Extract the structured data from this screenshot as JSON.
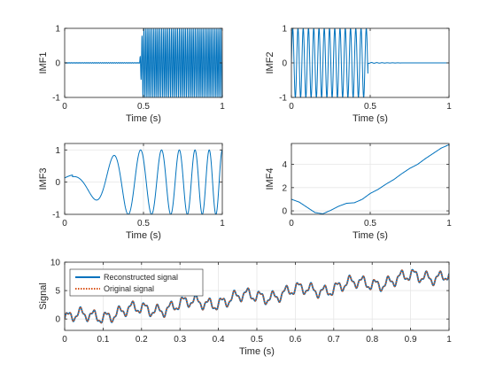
{
  "chart_data": [
    {
      "id": "imf1",
      "type": "line",
      "xlabel": "Time (s)",
      "ylabel": "IMF1",
      "xlim": [
        0,
        1
      ],
      "ylim": [
        -1,
        1
      ],
      "xticks": [
        "0",
        "0.5",
        "1"
      ],
      "yticks": [
        "-1",
        "0",
        "1"
      ],
      "grid": true,
      "color": "#0072BD",
      "series": [
        {
          "description": "near-zero flat line for t < 0.48, then a unit-amplitude sinusoid of about 80 Hz from 0.48 s to 1 s"
        }
      ]
    },
    {
      "id": "imf2",
      "type": "line",
      "xlabel": "Time (s)",
      "ylabel": "IMF2",
      "xlim": [
        0,
        1
      ],
      "ylim": [
        -1,
        1
      ],
      "xticks": [
        "0",
        "0.5",
        "1"
      ],
      "yticks": [
        "-1",
        "0",
        "1"
      ],
      "grid": true,
      "color": "#0072BD",
      "series": [
        {
          "description": "unit-amplitude sinusoid of about 30 Hz from 0 to 0.48 s, then a near-zero line to 1 s"
        }
      ]
    },
    {
      "id": "imf3",
      "type": "line",
      "xlabel": "Time (s)",
      "ylabel": "IMF3",
      "xlim": [
        0,
        1
      ],
      "ylim": [
        -1,
        1.2
      ],
      "xticks": [
        "0",
        "0.5",
        "1"
      ],
      "yticks": [
        "-1",
        "0",
        "1"
      ],
      "grid": true,
      "color": "#0072BD",
      "series": [
        {
          "description": "chirp oscillation whose amplitude grows from about 0.1 to 1 and whose frequency rises to roughly 12 Hz"
        }
      ]
    },
    {
      "id": "imf4",
      "type": "line",
      "xlabel": "Time (s)",
      "ylabel": "IMF4",
      "xlim": [
        0,
        1
      ],
      "ylim": [
        -0.3,
        5.8
      ],
      "xticks": [
        "0",
        "0.5",
        "1"
      ],
      "yticks": [
        "0",
        "2",
        "4"
      ],
      "grid": true,
      "color": "#0072BD",
      "x": [
        0,
        0.05,
        0.1,
        0.15,
        0.2,
        0.25,
        0.3,
        0.35,
        0.4,
        0.45,
        0.5,
        0.55,
        0.6,
        0.65,
        0.7,
        0.75,
        0.8,
        0.85,
        0.9,
        0.95,
        1.0
      ],
      "y": [
        1.0,
        0.75,
        0.3,
        -0.15,
        -0.25,
        0.05,
        0.4,
        0.65,
        0.7,
        1.0,
        1.5,
        1.85,
        2.3,
        2.7,
        3.2,
        3.65,
        4.0,
        4.5,
        4.95,
        5.4,
        5.7
      ]
    },
    {
      "id": "signal",
      "type": "line",
      "xlabel": "Time (s)",
      "ylabel": "Signal",
      "xlim": [
        0,
        1
      ],
      "ylim": [
        -2,
        10
      ],
      "xticks": [
        "0",
        "0.1",
        "0.2",
        "0.3",
        "0.4",
        "0.5",
        "0.6",
        "0.7",
        "0.8",
        "0.9",
        "1"
      ],
      "yticks": [
        "0",
        "5",
        "10"
      ],
      "grid": true,
      "legend_position": "top-left",
      "series": [
        {
          "name": "Reconstructed signal",
          "color": "#0072BD",
          "style": "solid"
        },
        {
          "name": "Original signal",
          "color": "#D95319",
          "style": "dotted"
        }
      ],
      "note": "sum of IMF1-IMF4: oscillating signal rising from about 0 to 8"
    }
  ]
}
